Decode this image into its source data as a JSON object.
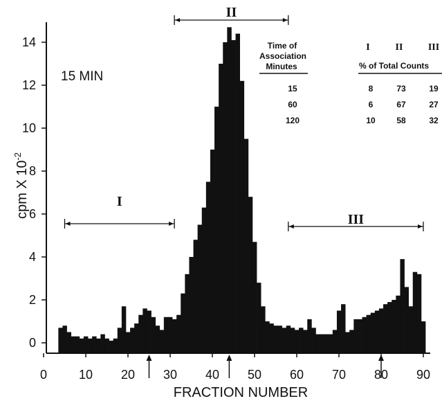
{
  "chart_data": {
    "type": "bar",
    "panel_label": "15 MIN",
    "xlabel": "FRACTION NUMBER",
    "ylabel": "cpm X 10",
    "ylabel_exponent": "-2",
    "xlim": [
      0,
      91
    ],
    "ylim": [
      -0.3,
      15
    ],
    "x_ticks": [
      0,
      10,
      20,
      30,
      40,
      50,
      60,
      70,
      80,
      90
    ],
    "x_tick_labels": [
      "0",
      "10",
      "20",
      "30",
      "40",
      "50",
      "60",
      "70",
      "80",
      "90"
    ],
    "y_ticks": [
      0,
      2,
      4,
      6,
      8,
      10,
      12,
      14
    ],
    "y_tick_labels": [
      "0",
      "2",
      "4",
      "6",
      "8",
      "10",
      "12",
      "14"
    ],
    "grid": false,
    "bar_color": "#111111",
    "x": [
      4,
      5,
      6,
      7,
      8,
      9,
      10,
      11,
      12,
      13,
      14,
      15,
      16,
      17,
      18,
      19,
      20,
      21,
      22,
      23,
      24,
      25,
      26,
      27,
      28,
      29,
      30,
      31,
      32,
      33,
      34,
      35,
      36,
      37,
      38,
      39,
      40,
      41,
      42,
      43,
      44,
      45,
      46,
      47,
      48,
      49,
      50,
      51,
      52,
      53,
      54,
      55,
      56,
      57,
      58,
      59,
      60,
      61,
      62,
      63,
      64,
      65,
      66,
      67,
      68,
      69,
      70,
      71,
      72,
      73,
      74,
      75,
      76,
      77,
      78,
      79,
      80,
      81,
      82,
      83,
      84,
      85,
      86,
      87,
      88,
      89,
      90
    ],
    "values": [
      0.7,
      0.8,
      0.5,
      0.3,
      0.3,
      0.2,
      0.3,
      0.2,
      0.3,
      0.2,
      0.4,
      0.2,
      0.1,
      0.2,
      0.7,
      1.7,
      0.5,
      0.7,
      0.9,
      1.3,
      1.6,
      1.5,
      1.2,
      0.8,
      0.6,
      1.2,
      1.2,
      1.1,
      1.3,
      2.3,
      3.2,
      4.0,
      4.8,
      5.5,
      6.3,
      7.5,
      9.0,
      11.0,
      13.0,
      14.0,
      14.7,
      14.1,
      14.4,
      12.2,
      9.5,
      6.8,
      4.7,
      2.8,
      1.7,
      1.0,
      0.9,
      0.8,
      0.8,
      0.7,
      0.8,
      0.7,
      0.6,
      0.7,
      0.6,
      1.1,
      0.7,
      0.4,
      0.4,
      0.4,
      0.4,
      0.6,
      1.5,
      1.8,
      0.5,
      0.6,
      1.1,
      1.1,
      1.2,
      1.3,
      1.4,
      1.5,
      1.6,
      1.8,
      1.9,
      2.0,
      2.2,
      3.9,
      2.6,
      1.7,
      3.3,
      3.2,
      1.0
    ],
    "arrows_below_axis": [
      25,
      44,
      80
    ],
    "regions": [
      {
        "label": "I",
        "from": 5,
        "to": 31
      },
      {
        "label": "II",
        "from": 31,
        "to": 58
      },
      {
        "label": "III",
        "from": 58,
        "to": 90
      }
    ],
    "table": {
      "row_header_lines": [
        "Time of",
        "Association",
        "Minutes"
      ],
      "col_labels": [
        "I",
        "II",
        "III"
      ],
      "col_subheader": "% of Total Counts",
      "rows": [
        {
          "time": "15",
          "values": [
            "8",
            "73",
            "19"
          ]
        },
        {
          "time": "60",
          "values": [
            "6",
            "67",
            "27"
          ]
        },
        {
          "time": "120",
          "values": [
            "10",
            "58",
            "32"
          ]
        }
      ]
    }
  }
}
